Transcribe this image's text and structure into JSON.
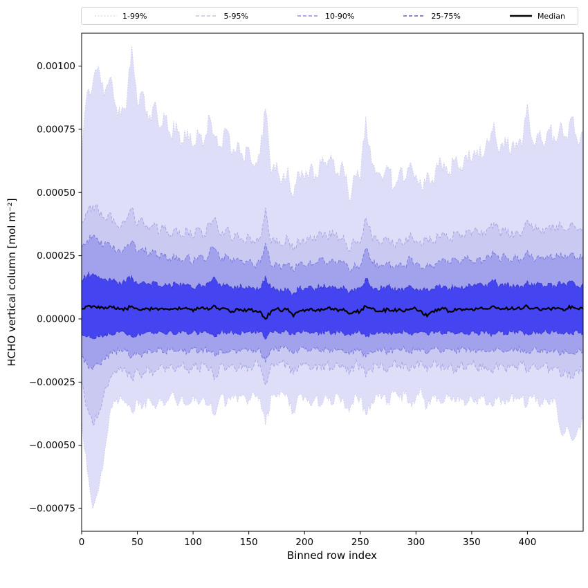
{
  "chart_data": {
    "type": "area",
    "title": "",
    "xlabel": "Binned row index",
    "ylabel": "HCHO vertical column [mol m⁻²]",
    "xlim": [
      0,
      450
    ],
    "ylim": [
      -0.00084,
      0.00113
    ],
    "x_ticks": [
      0,
      50,
      100,
      150,
      200,
      250,
      300,
      350,
      400
    ],
    "y_ticks": [
      -0.00075,
      -0.0005,
      -0.00025,
      0,
      0.00025,
      0.0005,
      0.00075,
      0.001
    ],
    "grid": false,
    "legend_position": "top",
    "value_scale": 1e-05,
    "colors": {
      "background": "#ffffff",
      "axis": "#000000"
    },
    "x": [
      0,
      5,
      10,
      15,
      20,
      25,
      30,
      35,
      40,
      45,
      50,
      55,
      60,
      65,
      70,
      75,
      80,
      85,
      90,
      95,
      100,
      105,
      110,
      115,
      120,
      125,
      130,
      135,
      140,
      145,
      150,
      155,
      160,
      165,
      170,
      175,
      180,
      185,
      190,
      195,
      200,
      205,
      210,
      215,
      220,
      225,
      230,
      235,
      240,
      245,
      250,
      255,
      260,
      265,
      270,
      275,
      280,
      285,
      290,
      295,
      300,
      305,
      310,
      315,
      320,
      325,
      330,
      335,
      340,
      345,
      350,
      355,
      360,
      365,
      370,
      375,
      380,
      385,
      390,
      395,
      400,
      405,
      410,
      415,
      420,
      425,
      430,
      435,
      440,
      445,
      450
    ],
    "series": {
      "p99": [
        65,
        90,
        93,
        100,
        88,
        95,
        85,
        80,
        83,
        108,
        85,
        90,
        78,
        85,
        75,
        80,
        72,
        78,
        70,
        75,
        68,
        73,
        70,
        80,
        72,
        68,
        75,
        65,
        70,
        63,
        68,
        60,
        65,
        83,
        58,
        62,
        55,
        60,
        48,
        58,
        55,
        60,
        57,
        62,
        60,
        63,
        58,
        60,
        47,
        57,
        55,
        80,
        62,
        58,
        55,
        60,
        52,
        58,
        55,
        62,
        57,
        52,
        58,
        55,
        60,
        62,
        58,
        63,
        60,
        65,
        62,
        67,
        64,
        70,
        78,
        66,
        72,
        65,
        70,
        68,
        85,
        70,
        73,
        68,
        75,
        70,
        78,
        72,
        80,
        70,
        74
      ],
      "p95": [
        38,
        42,
        45,
        43,
        40,
        42,
        38,
        36,
        39,
        44,
        37,
        39,
        35,
        38,
        34,
        37,
        33,
        36,
        33,
        35,
        32,
        36,
        33,
        38,
        40,
        33,
        36,
        31,
        34,
        31,
        33,
        30,
        32,
        44,
        30,
        32,
        29,
        32,
        27,
        31,
        30,
        33,
        31,
        34,
        32,
        35,
        31,
        33,
        27,
        31,
        30,
        40,
        33,
        31,
        30,
        32,
        29,
        32,
        30,
        34,
        31,
        29,
        32,
        30,
        33,
        34,
        31,
        34,
        32,
        35,
        33,
        35,
        33,
        36,
        38,
        34,
        36,
        33,
        35,
        34,
        39,
        35,
        36,
        34,
        37,
        35,
        37,
        35,
        38,
        35,
        36
      ],
      "p90": [
        28,
        31,
        33,
        31,
        29,
        30,
        27,
        26,
        28,
        31,
        26,
        28,
        25,
        27,
        24,
        26,
        23,
        25,
        23,
        25,
        22,
        25,
        23,
        27,
        28,
        23,
        25,
        22,
        24,
        22,
        23,
        21,
        22,
        30,
        21,
        22,
        20,
        22,
        19,
        22,
        21,
        23,
        22,
        24,
        22,
        24,
        22,
        23,
        19,
        22,
        21,
        28,
        23,
        22,
        21,
        22,
        20,
        22,
        21,
        24,
        22,
        20,
        22,
        21,
        23,
        24,
        22,
        24,
        22,
        24,
        23,
        24,
        23,
        25,
        26,
        23,
        25,
        23,
        24,
        23,
        27,
        24,
        25,
        23,
        25,
        24,
        26,
        24,
        26,
        24,
        25
      ],
      "p75": [
        15,
        17,
        18,
        17,
        16,
        16,
        15,
        14,
        15,
        17,
        14,
        15,
        14,
        15,
        13,
        14,
        13,
        14,
        13,
        14,
        12,
        14,
        13,
        15,
        16,
        13,
        14,
        12,
        13,
        12,
        13,
        12,
        12,
        17,
        12,
        12,
        11,
        12,
        10,
        12,
        12,
        13,
        12,
        13,
        12,
        13,
        12,
        13,
        10,
        12,
        12,
        16,
        13,
        12,
        12,
        13,
        11,
        12,
        12,
        13,
        12,
        11,
        12,
        12,
        13,
        13,
        12,
        13,
        12,
        13,
        13,
        14,
        13,
        14,
        15,
        13,
        14,
        13,
        13,
        13,
        15,
        13,
        14,
        13,
        14,
        13,
        14,
        13,
        15,
        13,
        14
      ],
      "median": [
        4,
        5,
        5,
        5,
        4,
        5,
        4,
        4,
        4,
        5,
        4,
        4,
        4,
        4,
        4,
        4,
        4,
        4,
        4,
        4,
        3,
        4,
        4,
        4,
        5,
        4,
        4,
        3,
        4,
        3,
        4,
        3,
        3,
        0,
        3,
        4,
        3,
        4,
        1,
        3,
        3,
        4,
        3,
        4,
        4,
        4,
        3,
        4,
        2,
        3,
        3,
        5,
        4,
        3,
        3,
        4,
        3,
        4,
        3,
        4,
        4,
        3,
        1,
        3,
        4,
        4,
        3,
        4,
        4,
        4,
        4,
        4,
        4,
        4,
        5,
        4,
        4,
        4,
        4,
        4,
        5,
        4,
        4,
        4,
        4,
        4,
        4,
        4,
        5,
        4,
        4
      ],
      "p25": [
        -6,
        -7,
        -8,
        -7,
        -7,
        -6,
        -6,
        -5,
        -6,
        -7,
        -6,
        -6,
        -5,
        -6,
        -5,
        -6,
        -5,
        -6,
        -5,
        -6,
        -5,
        -6,
        -5,
        -6,
        -7,
        -5,
        -6,
        -5,
        -6,
        -5,
        -5,
        -5,
        -5,
        -8,
        -5,
        -5,
        -5,
        -5,
        -6,
        -5,
        -5,
        -6,
        -5,
        -6,
        -5,
        -6,
        -5,
        -6,
        -6,
        -5,
        -5,
        -7,
        -6,
        -5,
        -5,
        -6,
        -5,
        -5,
        -5,
        -6,
        -5,
        -5,
        -6,
        -5,
        -5,
        -6,
        -5,
        -6,
        -5,
        -6,
        -5,
        -6,
        -5,
        -6,
        -6,
        -5,
        -6,
        -5,
        -5,
        -5,
        -6,
        -5,
        -6,
        -5,
        -6,
        -5,
        -6,
        -5,
        -6,
        -5,
        -6
      ],
      "p10": [
        -15,
        -18,
        -20,
        -18,
        -16,
        -14,
        -13,
        -12,
        -13,
        -15,
        -13,
        -14,
        -12,
        -13,
        -12,
        -13,
        -12,
        -13,
        -12,
        -13,
        -12,
        -13,
        -12,
        -13,
        -15,
        -12,
        -13,
        -12,
        -13,
        -12,
        -12,
        -12,
        -12,
        -17,
        -12,
        -12,
        -11,
        -12,
        -14,
        -12,
        -12,
        -13,
        -12,
        -13,
        -12,
        -13,
        -12,
        -13,
        -14,
        -12,
        -12,
        -15,
        -13,
        -12,
        -12,
        -13,
        -12,
        -12,
        -12,
        -13,
        -12,
        -12,
        -14,
        -12,
        -12,
        -13,
        -12,
        -13,
        -12,
        -13,
        -12,
        -13,
        -12,
        -13,
        -13,
        -12,
        -13,
        -12,
        -12,
        -12,
        -13,
        -12,
        -13,
        -12,
        -13,
        -12,
        -14,
        -13,
        -14,
        -13,
        -13
      ],
      "p5": [
        -25,
        -35,
        -42,
        -38,
        -30,
        -24,
        -21,
        -19,
        -21,
        -24,
        -20,
        -22,
        -19,
        -21,
        -19,
        -21,
        -18,
        -20,
        -18,
        -20,
        -18,
        -20,
        -18,
        -20,
        -23,
        -18,
        -20,
        -18,
        -20,
        -18,
        -19,
        -18,
        -18,
        -26,
        -18,
        -18,
        -17,
        -18,
        -22,
        -18,
        -18,
        -20,
        -18,
        -20,
        -18,
        -20,
        -18,
        -19,
        -22,
        -18,
        -18,
        -23,
        -20,
        -18,
        -18,
        -20,
        -17,
        -18,
        -18,
        -20,
        -18,
        -17,
        -21,
        -18,
        -18,
        -20,
        -18,
        -20,
        -18,
        -20,
        -18,
        -20,
        -18,
        -20,
        -20,
        -18,
        -20,
        -18,
        -19,
        -18,
        -20,
        -18,
        -20,
        -18,
        -20,
        -19,
        -23,
        -21,
        -23,
        -20,
        -21
      ],
      "p1": [
        -40,
        -60,
        -75,
        -68,
        -55,
        -38,
        -33,
        -30,
        -33,
        -37,
        -32,
        -35,
        -31,
        -34,
        -31,
        -34,
        -30,
        -33,
        -30,
        -34,
        -30,
        -34,
        -31,
        -34,
        -38,
        -30,
        -34,
        -30,
        -33,
        -30,
        -32,
        -30,
        -31,
        -42,
        -30,
        -31,
        -29,
        -31,
        -37,
        -30,
        -31,
        -34,
        -31,
        -34,
        -31,
        -34,
        -30,
        -32,
        -37,
        -30,
        -31,
        -38,
        -33,
        -30,
        -31,
        -33,
        -29,
        -31,
        -30,
        -33,
        -31,
        -29,
        -35,
        -30,
        -31,
        -33,
        -30,
        -33,
        -31,
        -34,
        -31,
        -34,
        -31,
        -34,
        -34,
        -31,
        -34,
        -31,
        -32,
        -31,
        -34,
        -31,
        -34,
        -31,
        -34,
        -32,
        -45,
        -42,
        -48,
        -44,
        -40
      ]
    },
    "noise_amplitude": {
      "p99": 3.5,
      "p95": 2,
      "p90": 1.6,
      "p75": 1.2,
      "median": 0.7,
      "p25": 0.9,
      "p10": 1.3,
      "p5": 2,
      "p1": 2.5
    },
    "bands": [
      {
        "label": "1-99%",
        "low": "p1",
        "high": "p99",
        "fill": "#dedef8",
        "line_color": "#c8c8e8",
        "line_dash": "1.5,2.2",
        "line_width": 0.9
      },
      {
        "label": "5-95%",
        "low": "p5",
        "high": "p95",
        "fill": "#c9c9f2",
        "line_color": "#a4a4e2",
        "line_dash": "4,2.5",
        "line_width": 0.95
      },
      {
        "label": "10-90%",
        "low": "p10",
        "high": "p90",
        "fill": "#a2a2ec",
        "line_color": "#7878de",
        "line_dash": "4.5,2.5",
        "line_width": 1
      },
      {
        "label": "25-75%",
        "low": "p25",
        "high": "p75",
        "fill": "#4444f0",
        "line_color": "#3a3acc",
        "line_dash": "5,2.5",
        "line_width": 1.1
      }
    ],
    "median_style": {
      "label": "Median",
      "color": "#000000",
      "width": 2.2
    },
    "legend_entries": [
      {
        "label": "1-99%",
        "color": "#c8c8e8",
        "dash": "2,2.5",
        "width": 1
      },
      {
        "label": "5-95%",
        "color": "#a4a4e2",
        "dash": "5,3",
        "width": 1
      },
      {
        "label": "10-90%",
        "color": "#7878de",
        "dash": "5,3",
        "width": 1.2
      },
      {
        "label": "25-75%",
        "color": "#3a3acc",
        "dash": "5,3",
        "width": 1.3
      },
      {
        "label": "Median",
        "color": "#000000",
        "dash": "",
        "width": 2.6
      }
    ]
  }
}
